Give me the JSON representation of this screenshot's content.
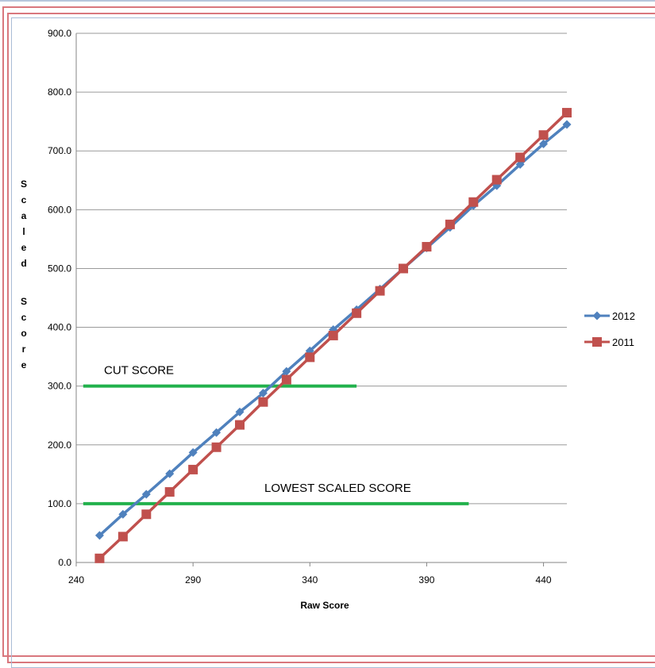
{
  "chart_data": {
    "type": "line",
    "title": "",
    "xlabel": "Raw Score",
    "ylabel": "Scaled Score",
    "ylabel_chars": [
      "S",
      "c",
      "a",
      "l",
      "e",
      "d",
      "",
      "S",
      "c",
      "o",
      "r",
      "e"
    ],
    "xlim": [
      240,
      450
    ],
    "ylim": [
      0,
      900
    ],
    "xticks": [
      240,
      290,
      340,
      390,
      440
    ],
    "yticks": [
      "0.0",
      "100.0",
      "200.0",
      "300.0",
      "400.0",
      "500.0",
      "600.0",
      "700.0",
      "800.0",
      "900.0"
    ],
    "grid": true,
    "legend_position": "right",
    "x": [
      250,
      260,
      270,
      280,
      290,
      300,
      310,
      320,
      330,
      340,
      350,
      360,
      370,
      380,
      390,
      400,
      410,
      420,
      430,
      440,
      450
    ],
    "series": [
      {
        "name": "2012",
        "color": "#4f81bd",
        "marker": "diamond",
        "values": [
          46,
          82,
          116,
          151,
          187,
          221,
          256,
          288,
          325,
          360,
          396,
          430,
          465,
          500,
          535,
          570,
          607,
          641,
          677,
          712,
          745
        ]
      },
      {
        "name": "2011",
        "color": "#c0504d",
        "marker": "square",
        "values": [
          7,
          44,
          82,
          120,
          158,
          196,
          234,
          273,
          311,
          349,
          386,
          424,
          462,
          500,
          537,
          575,
          613,
          651,
          689,
          727,
          765
        ]
      }
    ],
    "reference_lines": [
      {
        "label": "CUT SCORE",
        "y": 300,
        "x_start": 243,
        "x_end": 360,
        "color": "#22b14c"
      },
      {
        "label": "LOWEST SCALED SCORE",
        "y": 100,
        "x_start": 243,
        "x_end": 408,
        "color": "#22b14c"
      }
    ]
  }
}
